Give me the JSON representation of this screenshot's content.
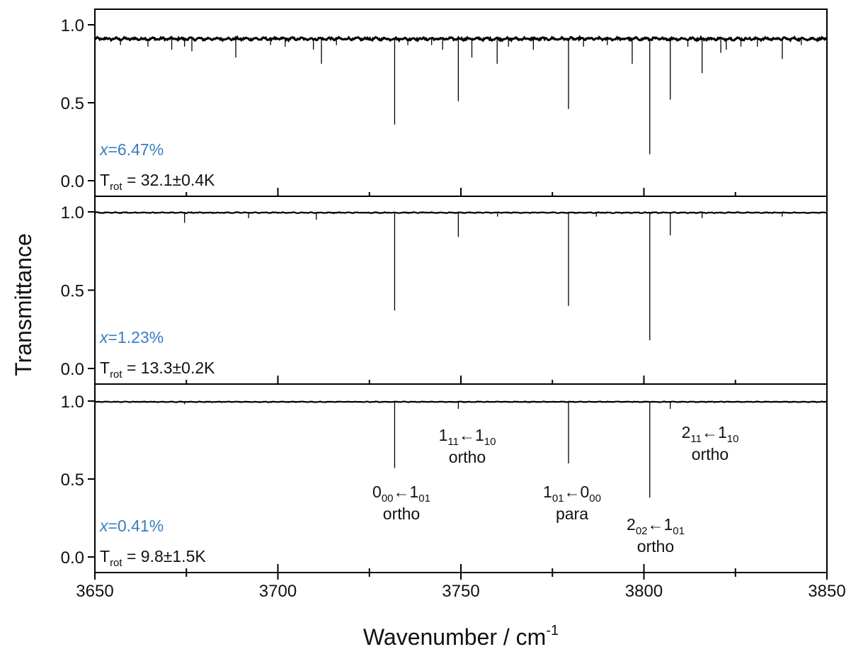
{
  "chart_data": {
    "type": "line",
    "ylabel": "Transmittance",
    "xlabel": "Wavenumber / cm",
    "xlabel_sup": "-1",
    "xlim": [
      3650,
      3850
    ],
    "xticks": [
      3650,
      3700,
      3750,
      3800,
      3850
    ],
    "x_minor_ticks": [
      3675,
      3725,
      3775,
      3825
    ],
    "ylim": [
      0.0,
      1.0
    ],
    "yticks": [
      "0.0",
      "0.5",
      "1.0"
    ],
    "grid": false,
    "colors": {
      "line": "#000000",
      "concentration": "#3a7ebf"
    },
    "panels": [
      {
        "concentration_prefix": "x",
        "concentration_value": "=6.47%",
        "trot_prefix": "T",
        "trot_sub": "rot",
        "trot_value": " = 32.1±0.4K",
        "baseline": 0.91,
        "noise": 0.012,
        "peaks": [
          {
            "x": 3731.9,
            "y": 0.36
          },
          {
            "x": 3749.3,
            "y": 0.51
          },
          {
            "x": 3779.4,
            "y": 0.46
          },
          {
            "x": 3801.6,
            "y": 0.17
          },
          {
            "x": 3807.2,
            "y": 0.52
          },
          {
            "x": 3815.9,
            "y": 0.69
          },
          {
            "x": 3759.9,
            "y": 0.75
          },
          {
            "x": 3796.8,
            "y": 0.75
          },
          {
            "x": 3711.9,
            "y": 0.75
          },
          {
            "x": 3688.5,
            "y": 0.79
          },
          {
            "x": 3753.0,
            "y": 0.79
          },
          {
            "x": 3837.8,
            "y": 0.78
          },
          {
            "x": 3671.0,
            "y": 0.84
          },
          {
            "x": 3676.5,
            "y": 0.83
          },
          {
            "x": 3709.7,
            "y": 0.84
          },
          {
            "x": 3745.0,
            "y": 0.84
          },
          {
            "x": 3769.8,
            "y": 0.84
          },
          {
            "x": 3821.0,
            "y": 0.82
          },
          {
            "x": 3822.5,
            "y": 0.84
          },
          {
            "x": 3657.0,
            "y": 0.87
          },
          {
            "x": 3664.5,
            "y": 0.86
          },
          {
            "x": 3674.5,
            "y": 0.86
          },
          {
            "x": 3698.0,
            "y": 0.87
          },
          {
            "x": 3702.0,
            "y": 0.86
          },
          {
            "x": 3716.0,
            "y": 0.87
          },
          {
            "x": 3735.5,
            "y": 0.87
          },
          {
            "x": 3742.0,
            "y": 0.87
          },
          {
            "x": 3763.0,
            "y": 0.86
          },
          {
            "x": 3783.5,
            "y": 0.86
          },
          {
            "x": 3790.0,
            "y": 0.87
          },
          {
            "x": 3812.0,
            "y": 0.86
          },
          {
            "x": 3826.5,
            "y": 0.86
          },
          {
            "x": 3831.0,
            "y": 0.86
          },
          {
            "x": 3843.0,
            "y": 0.87
          }
        ]
      },
      {
        "concentration_prefix": "x",
        "concentration_value": "=1.23%",
        "trot_prefix": "T",
        "trot_sub": "rot",
        "trot_value": " = 13.3±0.2K",
        "baseline": 0.995,
        "noise": 0.004,
        "peaks": [
          {
            "x": 3731.9,
            "y": 0.37
          },
          {
            "x": 3749.3,
            "y": 0.84
          },
          {
            "x": 3779.4,
            "y": 0.4
          },
          {
            "x": 3801.6,
            "y": 0.18
          },
          {
            "x": 3807.2,
            "y": 0.85
          },
          {
            "x": 3674.5,
            "y": 0.93
          },
          {
            "x": 3692.0,
            "y": 0.96
          },
          {
            "x": 3710.5,
            "y": 0.95
          },
          {
            "x": 3760.0,
            "y": 0.97
          },
          {
            "x": 3787.0,
            "y": 0.97
          },
          {
            "x": 3815.9,
            "y": 0.96
          },
          {
            "x": 3837.8,
            "y": 0.97
          }
        ]
      },
      {
        "concentration_prefix": "x",
        "concentration_value": "=0.41%",
        "trot_prefix": "T",
        "trot_sub": "rot",
        "trot_value": " = 9.8±1.5K",
        "baseline": 0.995,
        "noise": 0.003,
        "peaks": [
          {
            "x": 3731.9,
            "y": 0.57
          },
          {
            "x": 3749.3,
            "y": 0.95
          },
          {
            "x": 3779.4,
            "y": 0.6
          },
          {
            "x": 3801.6,
            "y": 0.38
          },
          {
            "x": 3807.2,
            "y": 0.95
          },
          {
            "x": 3674.5,
            "y": 0.98
          },
          {
            "x": 3710.5,
            "y": 0.99
          }
        ]
      }
    ],
    "annotations": [
      {
        "pre": "0",
        "s1": "00",
        "mid": "←1",
        "s2": "01",
        "line2": "ortho"
      },
      {
        "pre": "1",
        "s1": "11",
        "mid": "←1",
        "s2": "10",
        "line2": "ortho"
      },
      {
        "pre": "1",
        "s1": "01",
        "mid": "←0",
        "s2": "00",
        "line2": "para"
      },
      {
        "pre": "2",
        "s1": "02",
        "mid": "←1",
        "s2": "01",
        "line2": "ortho"
      },
      {
        "pre": "2",
        "s1": "11",
        "mid": "←1",
        "s2": "10",
        "line2": "ortho"
      }
    ]
  }
}
